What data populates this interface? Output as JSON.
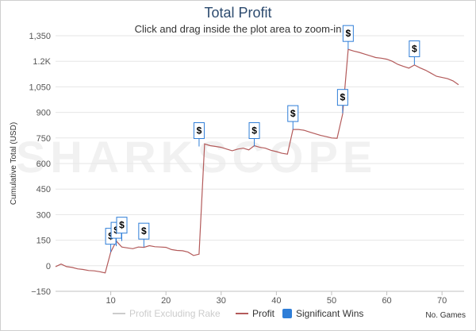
{
  "title": "Total Profit",
  "subtitle": "Click and drag inside the plot area to zoom-in",
  "watermark": "SHARKSCOPE",
  "chart_data": {
    "type": "line",
    "xlabel": "No. Games",
    "ylabel": "Cumulative Total (USD)",
    "xlim": [
      0,
      74
    ],
    "ylim": [
      -150,
      1350
    ],
    "x_ticks": [
      10,
      20,
      30,
      40,
      50,
      60,
      70
    ],
    "y_ticks": [
      -150,
      0,
      150,
      300,
      450,
      600,
      750,
      900,
      1050,
      "1.2K",
      1350
    ],
    "y_tick_labels": [
      "−150",
      "0",
      "150",
      "300",
      "450",
      "600",
      "750",
      "900",
      "1,050",
      "1.2K",
      "1,350"
    ],
    "grid": "horizontal",
    "legend_position": "bottom",
    "series": [
      {
        "name": "Profit Excluding Rake",
        "color": "#cccccc",
        "hidden": true,
        "points": []
      },
      {
        "name": "Profit",
        "color": "#b35a5a",
        "points": [
          [
            0,
            -5
          ],
          [
            1,
            10
          ],
          [
            2,
            -5
          ],
          [
            3,
            -10
          ],
          [
            4,
            -18
          ],
          [
            5,
            -22
          ],
          [
            6,
            -28
          ],
          [
            7,
            -30
          ],
          [
            8,
            -35
          ],
          [
            9,
            -42
          ],
          [
            10,
            80
          ],
          [
            11,
            145
          ],
          [
            12,
            110
          ],
          [
            13,
            105
          ],
          [
            14,
            100
          ],
          [
            15,
            110
          ],
          [
            16,
            108
          ],
          [
            17,
            118
          ],
          [
            18,
            112
          ],
          [
            19,
            110
          ],
          [
            20,
            108
          ],
          [
            21,
            95
          ],
          [
            22,
            90
          ],
          [
            23,
            88
          ],
          [
            24,
            80
          ],
          [
            25,
            60
          ],
          [
            26,
            68
          ],
          [
            27,
            715
          ],
          [
            28,
            705
          ],
          [
            29,
            700
          ],
          [
            30,
            695
          ],
          [
            31,
            685
          ],
          [
            32,
            675
          ],
          [
            33,
            685
          ],
          [
            34,
            690
          ],
          [
            35,
            680
          ],
          [
            36,
            705
          ],
          [
            37,
            695
          ],
          [
            38,
            690
          ],
          [
            39,
            678
          ],
          [
            40,
            670
          ],
          [
            41,
            660
          ],
          [
            42,
            655
          ],
          [
            43,
            800
          ],
          [
            44,
            800
          ],
          [
            45,
            795
          ],
          [
            46,
            785
          ],
          [
            47,
            775
          ],
          [
            48,
            765
          ],
          [
            49,
            758
          ],
          [
            50,
            750
          ],
          [
            51,
            748
          ],
          [
            52,
            890
          ],
          [
            53,
            1270
          ],
          [
            54,
            1260
          ],
          [
            55,
            1252
          ],
          [
            56,
            1242
          ],
          [
            57,
            1232
          ],
          [
            58,
            1222
          ],
          [
            59,
            1218
          ],
          [
            60,
            1212
          ],
          [
            61,
            1200
          ],
          [
            62,
            1182
          ],
          [
            63,
            1170
          ],
          [
            64,
            1160
          ],
          [
            65,
            1178
          ],
          [
            66,
            1162
          ],
          [
            67,
            1148
          ],
          [
            68,
            1130
          ],
          [
            69,
            1112
          ],
          [
            70,
            1105
          ],
          [
            71,
            1098
          ],
          [
            72,
            1085
          ],
          [
            73,
            1062
          ]
        ]
      }
    ],
    "significant_wins": {
      "name": "Significant Wins",
      "color": "#2f7ed8",
      "symbol": "$",
      "points": [
        [
          10,
          80
        ],
        [
          11,
          115
        ],
        [
          12,
          145
        ],
        [
          16,
          110
        ],
        [
          26,
          700
        ],
        [
          36,
          700
        ],
        [
          43,
          800
        ],
        [
          52,
          895
        ],
        [
          53,
          1270
        ],
        [
          65,
          1180
        ]
      ]
    }
  },
  "legend": {
    "items": [
      {
        "label": "Profit Excluding Rake",
        "color": "#cccccc"
      },
      {
        "label": "Profit",
        "color": "#b35a5a"
      },
      {
        "label": "Significant Wins",
        "color": "#2f7ed8"
      }
    ]
  }
}
